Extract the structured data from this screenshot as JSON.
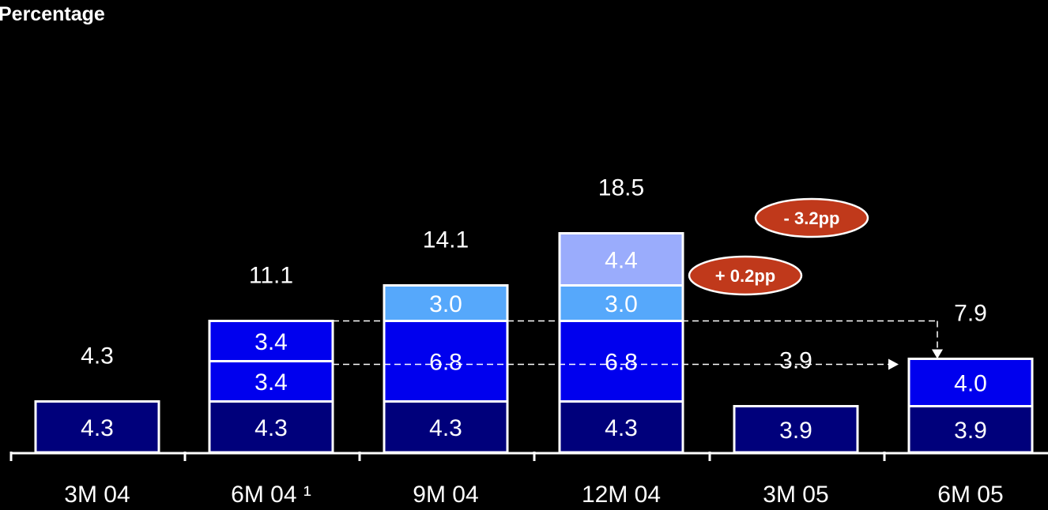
{
  "chart_data": {
    "type": "bar",
    "stacked": true,
    "ylabel": "Percentage",
    "categories": [
      "3M 04",
      "6M 04 ¹",
      "9M 04",
      "12M 04",
      "3M 05",
      "6M 05"
    ],
    "series": [
      {
        "values": [
          4.3,
          4.3,
          4.3,
          4.3,
          3.9,
          3.9
        ],
        "color": "#00007b"
      },
      {
        "values": [
          null,
          3.4,
          6.8,
          6.8,
          null,
          4.0
        ],
        "color": "#0000ee"
      },
      {
        "values": [
          null,
          3.4,
          null,
          null,
          null,
          null
        ],
        "color": "#0000ee"
      },
      {
        "values": [
          null,
          null,
          3.0,
          3.0,
          null,
          null
        ],
        "color": "#56a8fb"
      },
      {
        "values": [
          null,
          null,
          null,
          4.4,
          null,
          null
        ],
        "color": "#9aacfc"
      }
    ],
    "totals": [
      "4.3",
      "11.1",
      "14.1",
      "18.5",
      "3.9",
      "7.9"
    ],
    "annotations": [
      {
        "text": "- 3.2pp",
        "color": "#c0391b"
      },
      {
        "text": "+ 0.2pp",
        "color": "#c0391b"
      }
    ],
    "grid": false,
    "legend": "none"
  }
}
